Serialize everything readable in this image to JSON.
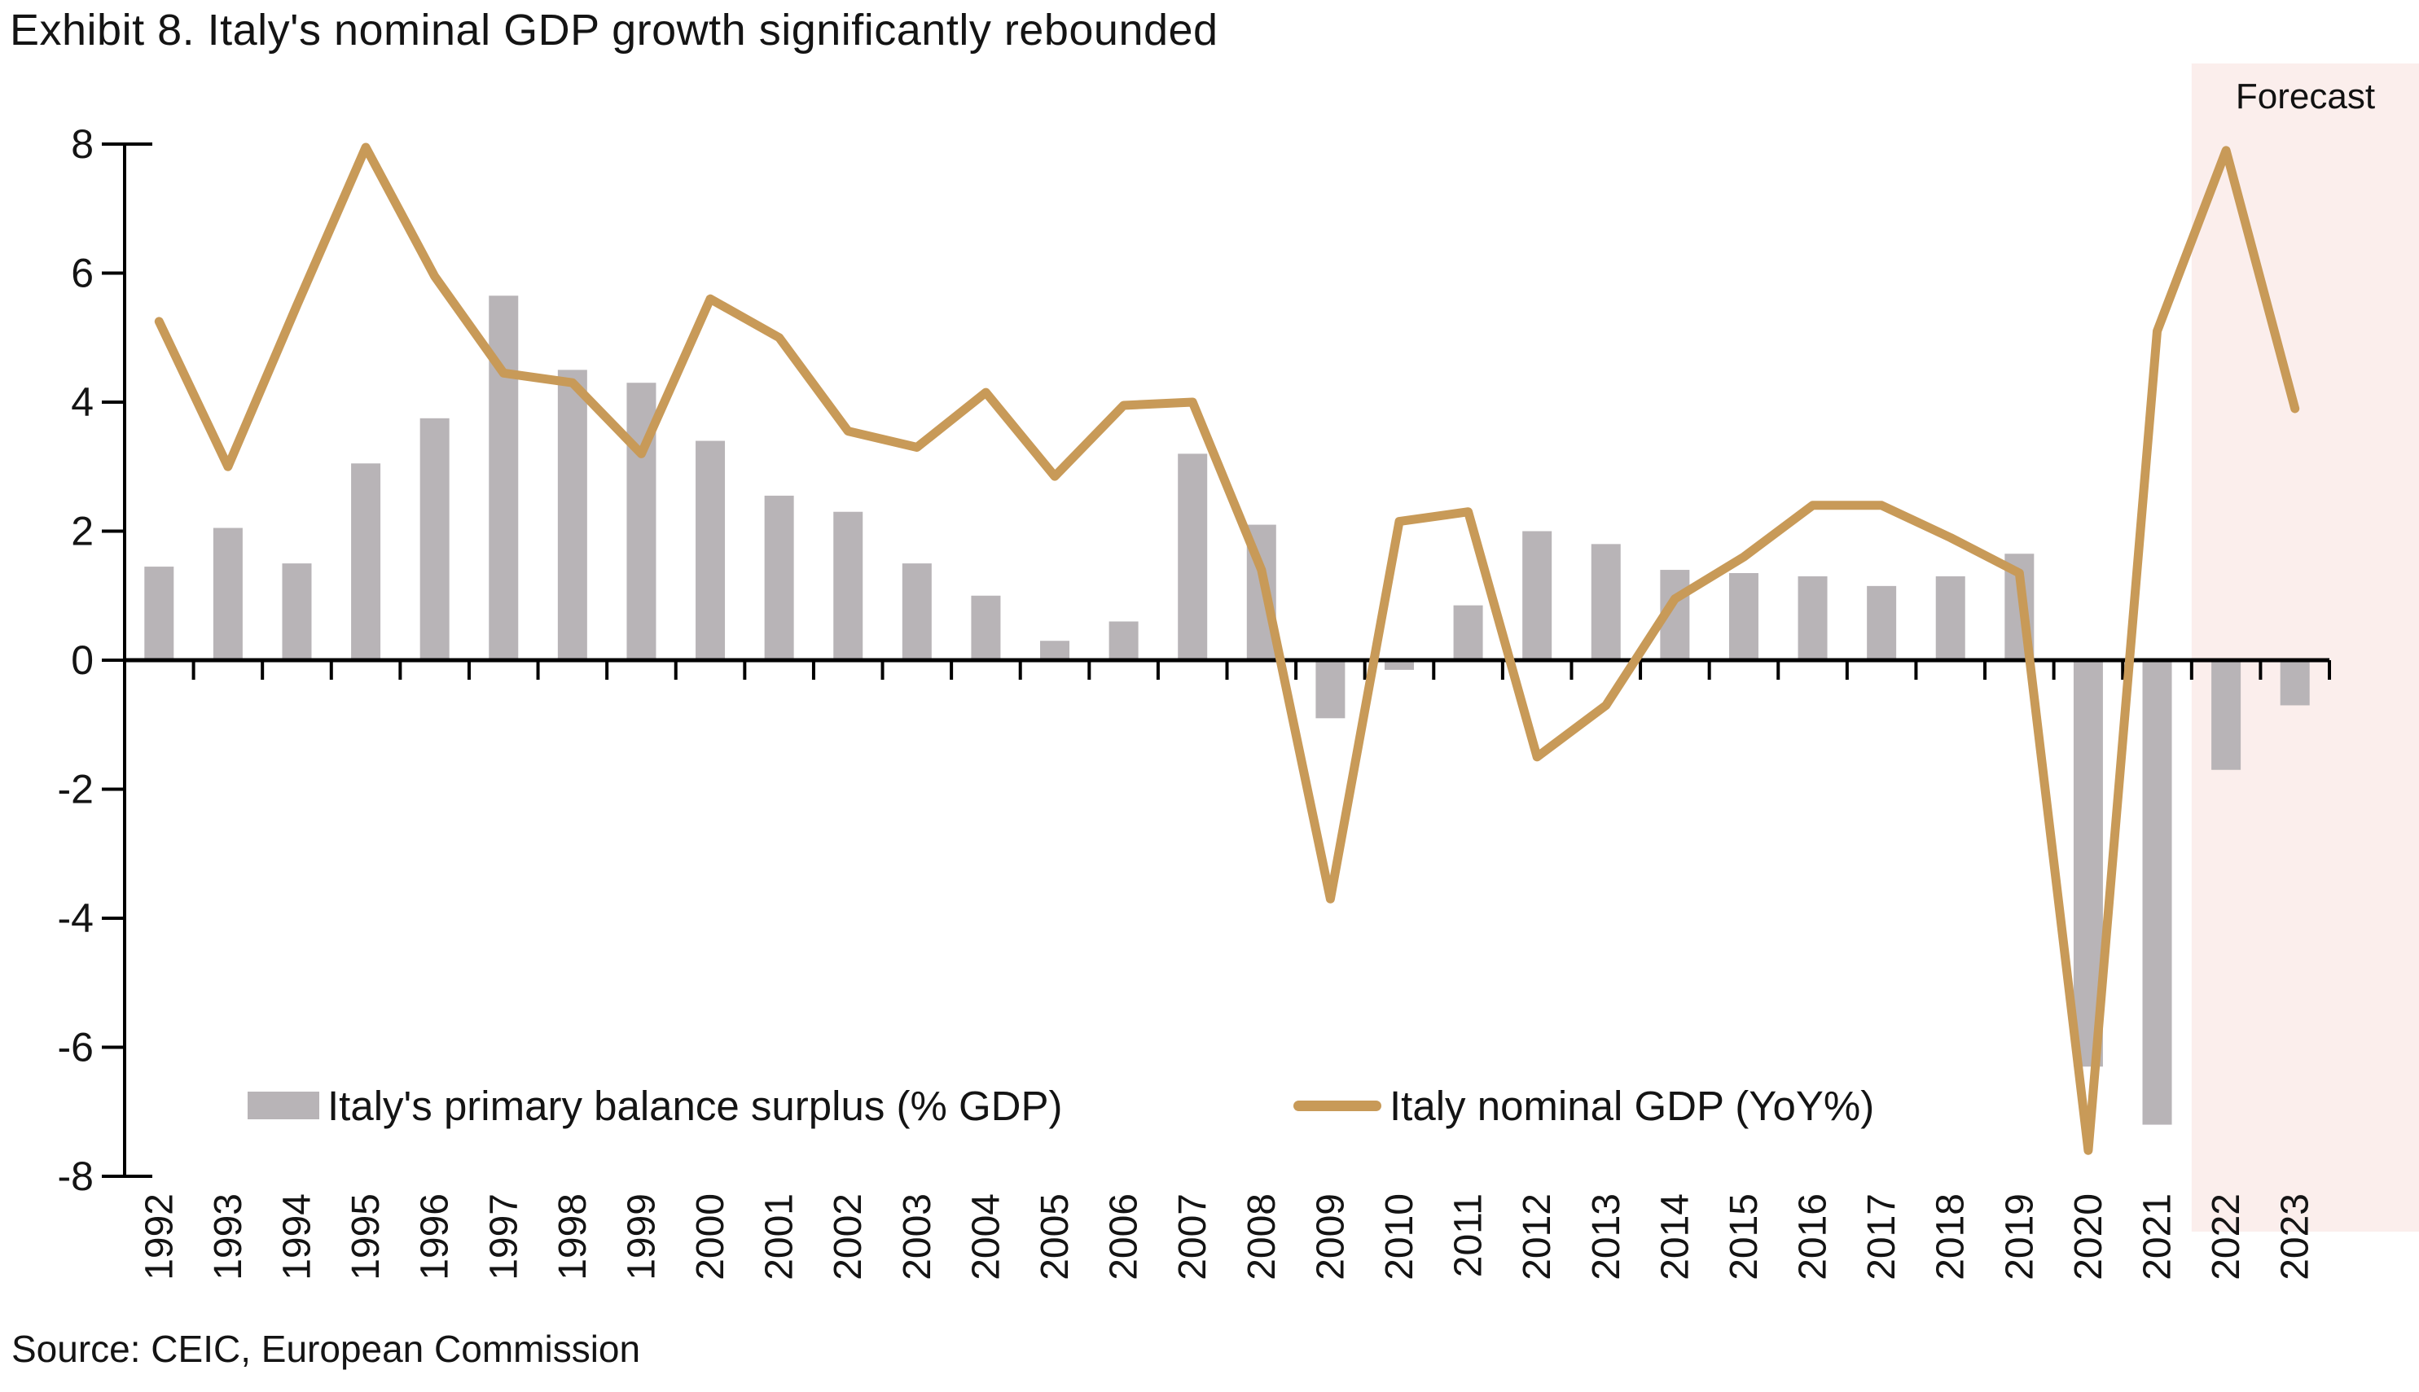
{
  "title": "Exhibit 8. Italy's nominal GDP growth significantly rebounded",
  "forecast_label": "Forecast",
  "source": "Source: CEIC, European Commission",
  "colors": {
    "bar": "#b8b4b7",
    "line": "#c89a58",
    "forecast_band": "#fbeeec",
    "axis": "#000000",
    "text": "#141414"
  },
  "chart_data": {
    "type": "bar",
    "title": "Exhibit 8. Italy's nominal GDP growth significantly rebounded",
    "xlabel": "",
    "ylabel": "",
    "ylim": [
      -8,
      8
    ],
    "y_ticks": [
      8,
      6,
      4,
      2,
      0,
      -2,
      -4,
      -6,
      -8
    ],
    "grid": false,
    "legend_position": "bottom",
    "categories": [
      "1992",
      "1993",
      "1994",
      "1995",
      "1996",
      "1997",
      "1998",
      "1999",
      "2000",
      "2001",
      "2002",
      "2003",
      "2004",
      "2005",
      "2006",
      "2007",
      "2008",
      "2009",
      "2010",
      "2011",
      "2012",
      "2013",
      "2014",
      "2015",
      "2016",
      "2017",
      "2018",
      "2019",
      "2020",
      "2021",
      "2022",
      "2023"
    ],
    "series": [
      {
        "name": "Italy's primary balance surplus (% GDP)",
        "type": "bar",
        "color": "#b8b4b7",
        "values": [
          1.45,
          2.05,
          1.5,
          3.05,
          3.75,
          5.65,
          4.5,
          4.3,
          3.4,
          2.55,
          2.3,
          1.5,
          1.0,
          0.3,
          0.6,
          3.2,
          2.1,
          -0.9,
          -0.15,
          0.85,
          2.0,
          1.8,
          1.4,
          1.35,
          1.3,
          1.15,
          1.3,
          1.65,
          -6.3,
          -7.2,
          -1.7,
          -0.7
        ]
      },
      {
        "name": "Italy nominal GDP (YoY%)",
        "type": "line",
        "color": "#c89a58",
        "values": [
          5.25,
          3.0,
          5.5,
          7.95,
          5.95,
          4.45,
          4.3,
          3.2,
          5.6,
          5.0,
          3.55,
          3.3,
          4.15,
          2.85,
          3.95,
          4.0,
          1.4,
          -3.7,
          2.15,
          2.3,
          -1.5,
          -0.7,
          0.95,
          1.6,
          2.4,
          2.4,
          1.9,
          1.35,
          -7.6,
          5.1,
          7.9,
          3.9
        ]
      }
    ],
    "forecast_band": {
      "label": "Forecast",
      "start_category": "2022",
      "end_category": "2023",
      "color": "#fbeeec"
    }
  }
}
